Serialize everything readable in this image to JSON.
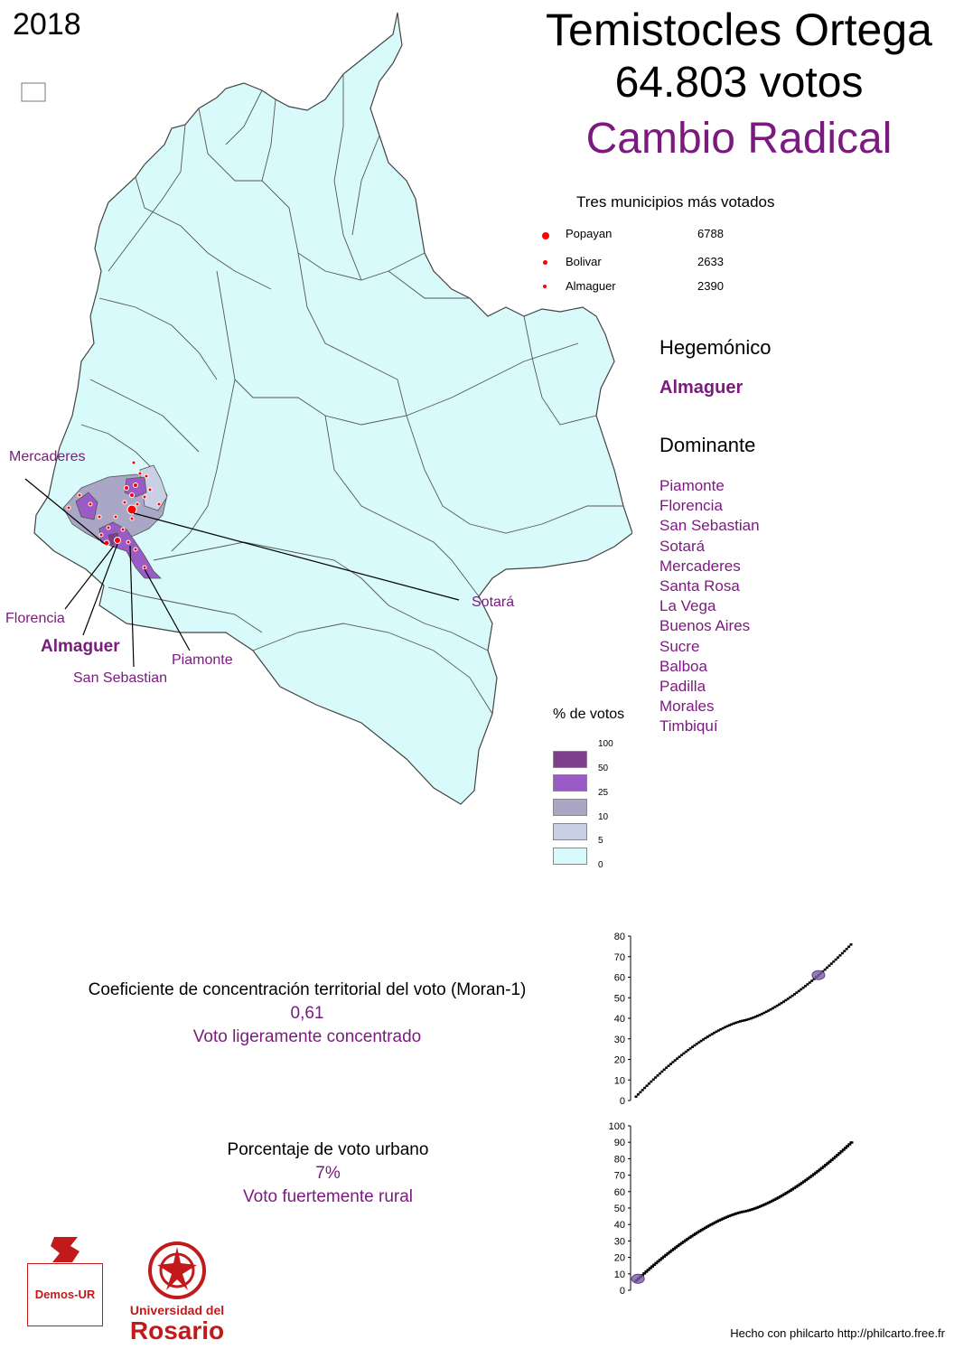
{
  "year": "2018",
  "title": {
    "candidate": "Temistocles Ortega",
    "votes": "64.803 votos",
    "party": "Cambio Radical"
  },
  "top_municipalities": {
    "title": "Tres municipios más votados",
    "items": [
      {
        "name": "Popayan",
        "votes": "6788"
      },
      {
        "name": "Bolivar",
        "votes": "2633"
      },
      {
        "name": "Almaguer",
        "votes": "2390"
      }
    ]
  },
  "hegemonic": {
    "heading": "Hegemónico",
    "items": [
      "Almaguer"
    ]
  },
  "dominant": {
    "heading": "Dominante",
    "items": [
      "Piamonte",
      "Florencia",
      "San Sebastian",
      "Sotará",
      "Mercaderes",
      "Santa Rosa",
      "La Vega",
      "Buenos Aires",
      "Sucre",
      "Balboa",
      "Padilla",
      "Morales",
      "Timbiquí"
    ]
  },
  "map_labels": {
    "mercaderes": "Mercaderes",
    "florencia": "Florencia",
    "almaguer": "Almaguer",
    "san_sebastian": "San Sebastian",
    "piamonte": "Piamonte",
    "sotara": "Sotará"
  },
  "legend": {
    "title": "% de votos",
    "breaks": [
      "100",
      "50",
      "25",
      "10",
      "5",
      "0"
    ],
    "colors": [
      "#7b3f8c",
      "#9a5cc4",
      "#a9a6c6",
      "#c9d0e6",
      "#d9fafa"
    ]
  },
  "moran": {
    "title": "Coeficiente de concentración territorial del voto (Moran-1)",
    "value": "0,61",
    "description": "Voto ligeramente concentrado"
  },
  "urban": {
    "title": "Porcentaje de voto urbano",
    "value": "7%",
    "description": "Voto fuertemente rural"
  },
  "logos": {
    "demos": "Demos-UR",
    "university_line1": "Universidad del",
    "university_line2": "Rosario"
  },
  "credit": "Hecho con philcarto http://philcarto.free.fr",
  "chart_data": [
    {
      "type": "scatter",
      "title": "",
      "xlabel": "",
      "ylabel": "",
      "ylim": [
        0,
        80
      ],
      "yticks": [
        "0",
        "10",
        "20",
        "30",
        "40",
        "50",
        "60",
        "70",
        "80"
      ],
      "series": [
        {
          "name": "Moran ranked values",
          "n_points": 100,
          "start": 2,
          "end": 76
        }
      ],
      "highlight": {
        "value": 61
      }
    },
    {
      "type": "scatter",
      "title": "",
      "xlabel": "",
      "ylabel": "",
      "ylim": [
        0,
        100
      ],
      "yticks": [
        "0",
        "10",
        "20",
        "30",
        "40",
        "50",
        "60",
        "70",
        "80",
        "90",
        "100"
      ],
      "series": [
        {
          "name": "Urban vote ranked values",
          "n_points": 110,
          "start": 6,
          "end": 90
        }
      ],
      "highlight": {
        "value": 7
      }
    }
  ]
}
